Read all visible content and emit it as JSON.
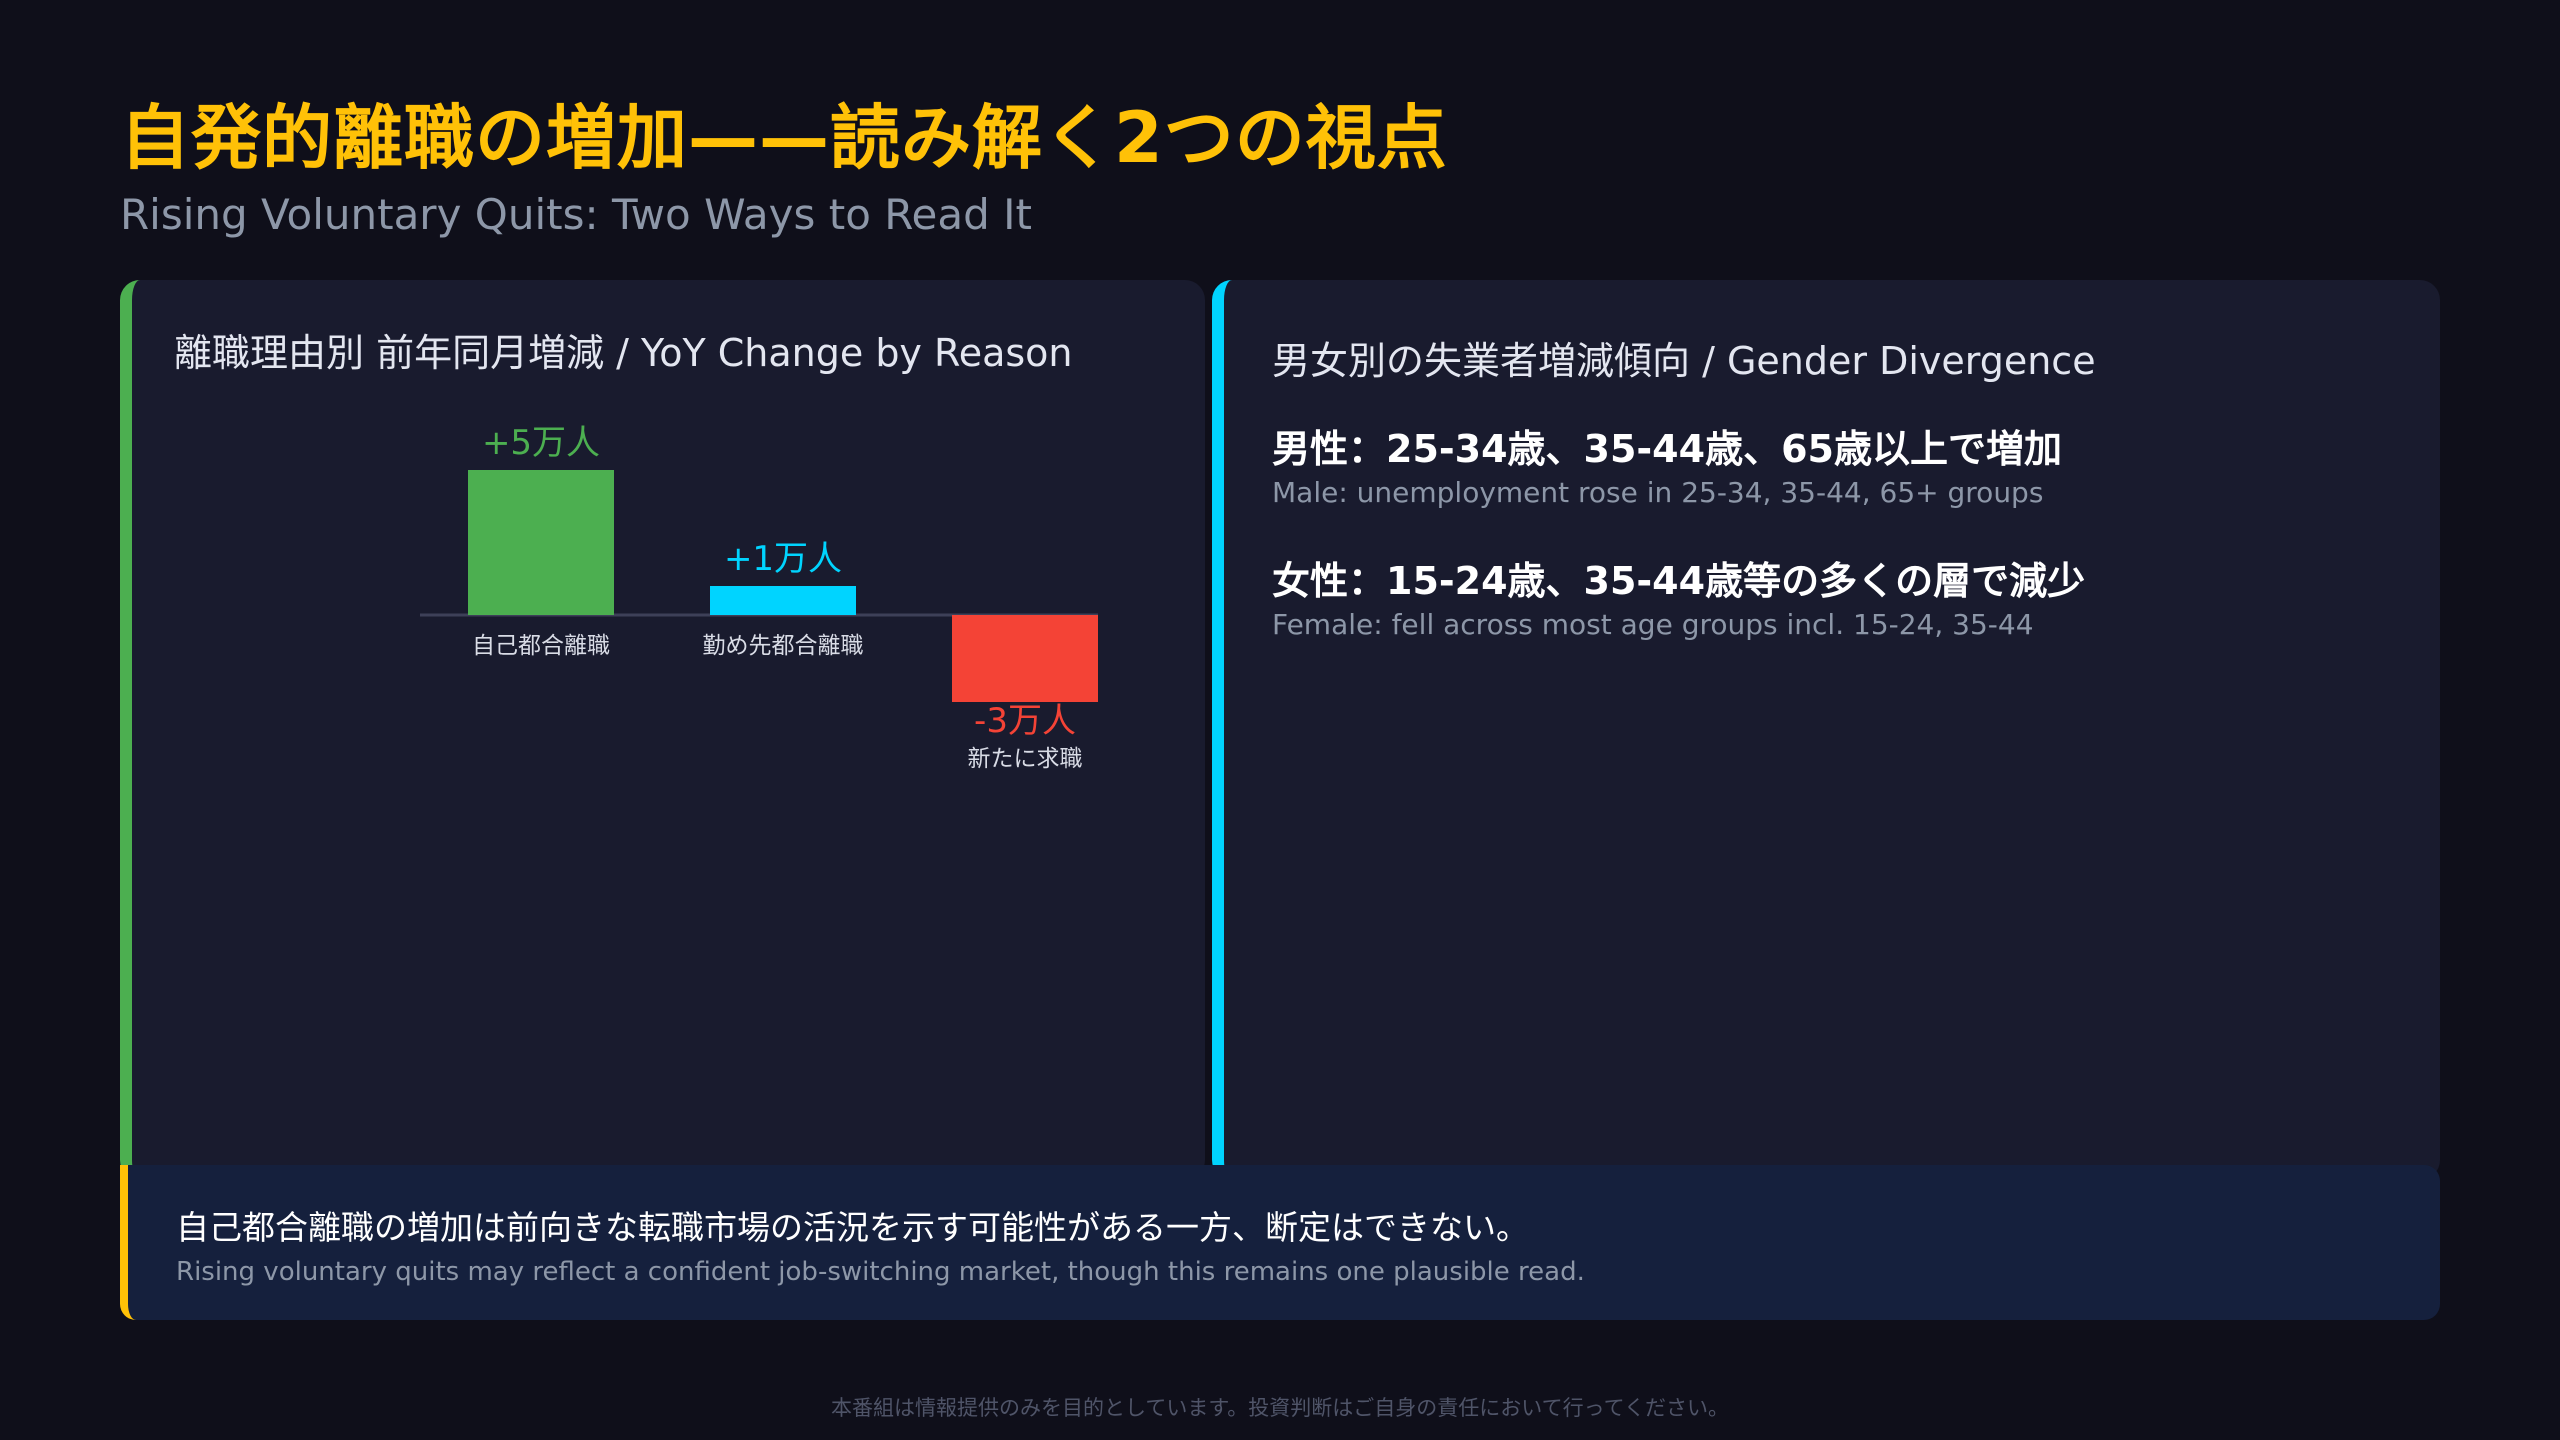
{
  "header": {
    "title": "自発的離職の増加——読み解く2つの視点",
    "subtitle": "Rising Voluntary Quits: Two Ways to Read It"
  },
  "left_panel": {
    "title": "離職理由別 前年同月増減 / YoY Change by Reason",
    "accent": "#4caf50"
  },
  "chart_data": {
    "type": "bar",
    "title": "離職理由別 前年同月増減 / YoY Change by Reason",
    "categories": [
      "自己都合離職",
      "勤め先都合離職",
      "新たに求職"
    ],
    "values": [
      5,
      1,
      -3
    ],
    "value_labels": [
      "+5万人",
      "+1万人",
      "-3万人"
    ],
    "colors": [
      "#4caf50",
      "#00d4ff",
      "#f44336"
    ],
    "ylim": [
      -3,
      5
    ],
    "grid": false,
    "legend": "none"
  },
  "right_panel": {
    "title": "男女別の失業者増減傾向 / Gender Divergence",
    "accent": "#00d4ff",
    "points": [
      {
        "main": "男性：25-34歳、35-44歳、65歳以上で増加",
        "sub": "Male: unemployment rose in 25-34, 35-44, 65+ groups"
      },
      {
        "main": "女性：15-24歳、35-44歳等の多くの層で減少",
        "sub": "Female: fell across most age groups incl. 15-24, 35-44"
      }
    ]
  },
  "callout": {
    "main": "自己都合離職の増加は前向きな転職市場の活況を示す可能性がある一方、断定はできない。",
    "sub": "Rising voluntary quits may reflect a confident job-switching market, though this remains one plausible read.",
    "accent": "#ffc107"
  },
  "footer": {
    "disclaimer": "本番組は情報提供のみを目的としています。投資判断はご自身の責任において行ってください。"
  }
}
